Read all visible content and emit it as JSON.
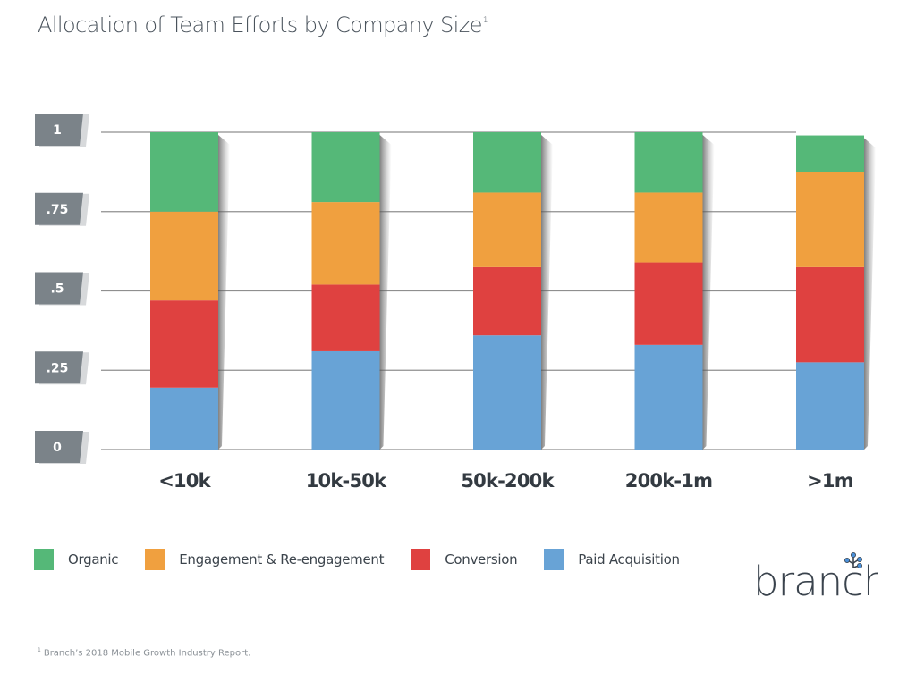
{
  "title": "Allocation of Team Efforts by Company Size",
  "title_footnote_marker": "1",
  "footnote": {
    "marker": "1",
    "text": "Branch’s 2018 Mobile Growth Industry Report."
  },
  "logo": {
    "text": "branch",
    "accent": "#4a90d9",
    "color": "#3a434d"
  },
  "chart_data": {
    "type": "bar",
    "stacked": true,
    "title": "Allocation of Team Efforts by Company Size",
    "xlabel": "",
    "ylabel": "",
    "ylim": [
      0,
      1
    ],
    "yticks": [
      0,
      0.25,
      0.5,
      0.75,
      1
    ],
    "ytick_labels": [
      "0",
      ".25",
      ".5",
      ".75",
      "1"
    ],
    "grid": true,
    "legend_position": "bottom-left",
    "categories": [
      "<10k",
      "10k-50k",
      "50k-200k",
      "200k-1m",
      ">1m"
    ],
    "series": [
      {
        "name": "Paid Acquisition",
        "color": "#68a3d6",
        "values": [
          0.195,
          0.31,
          0.36,
          0.33,
          0.275
        ]
      },
      {
        "name": "Conversion",
        "color": "#df4140",
        "values": [
          0.275,
          0.21,
          0.215,
          0.26,
          0.3
        ]
      },
      {
        "name": "Engagement & Re-engagement",
        "color": "#f0a03f",
        "values": [
          0.28,
          0.26,
          0.235,
          0.22,
          0.3
        ]
      },
      {
        "name": "Organic",
        "color": "#55b878",
        "values": [
          0.25,
          0.22,
          0.19,
          0.19,
          0.115
        ]
      }
    ],
    "legend_order": [
      "Organic",
      "Engagement & Re-engagement",
      "Conversion",
      "Paid Acquisition"
    ]
  },
  "colors": {
    "tick_tag": "#7b8389",
    "tick_text": "#ffffff",
    "category_text": "#333a41",
    "gridline": "#8f8f8f"
  }
}
